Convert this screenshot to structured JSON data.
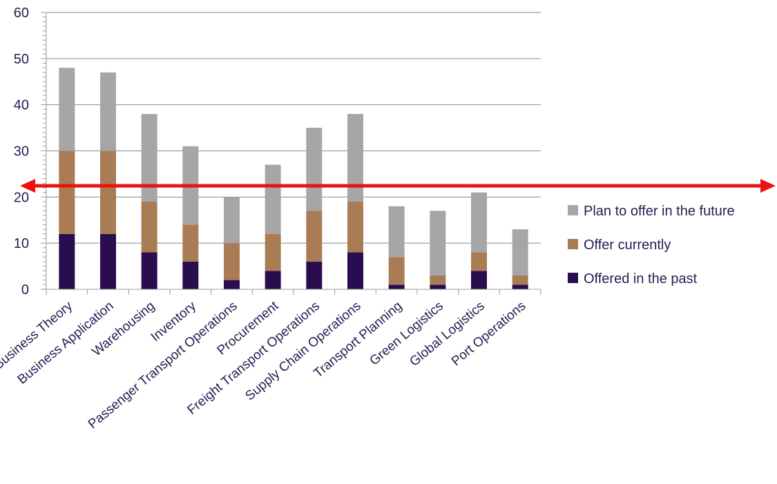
{
  "chart_data": {
    "type": "bar",
    "stacked": true,
    "categories": [
      "Business Theory",
      "Business Application",
      "Warehousing",
      "Inventory",
      "Passenger Transport Operations",
      "Procurement",
      "Freight Transport Operations",
      "Supply Chain Operations",
      "Transport Planning",
      "Green Logistics",
      "Global Logistics",
      "Port Operations"
    ],
    "series": [
      {
        "name": "Offered in the past",
        "color": "#2a0d4e",
        "values": [
          12,
          12,
          8,
          6,
          2,
          4,
          6,
          8,
          1,
          1,
          4,
          1
        ]
      },
      {
        "name": "Offer currently",
        "color": "#a97c55",
        "values": [
          18,
          18,
          11,
          8,
          8,
          8,
          11,
          11,
          6,
          2,
          4,
          2
        ]
      },
      {
        "name": "Plan to offer in the future",
        "color": "#a6a6a6",
        "values": [
          18,
          17,
          19,
          17,
          10,
          15,
          18,
          19,
          11,
          14,
          13,
          10
        ]
      }
    ],
    "ylim": [
      0,
      60
    ],
    "yticks": [
      "0",
      "10",
      "20",
      "30",
      "40",
      "50",
      "60"
    ],
    "grid": true,
    "legend_position": "right",
    "reference_line": {
      "value": 22.5,
      "color": "#ee1111",
      "style": "double-headed arrow"
    },
    "title": "",
    "xlabel": "",
    "ylabel": ""
  }
}
